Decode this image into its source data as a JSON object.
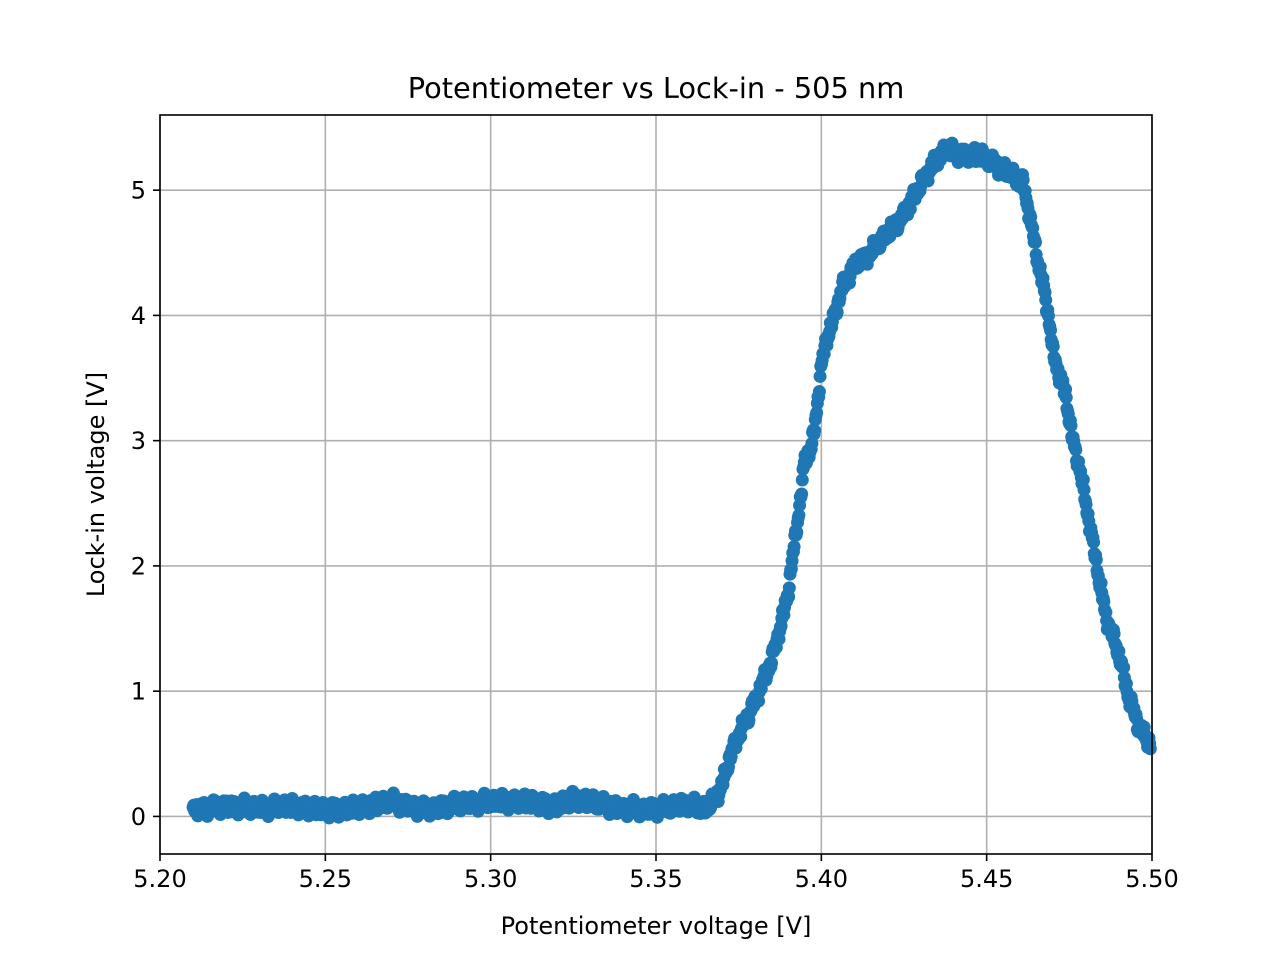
{
  "chart_data": {
    "type": "scatter",
    "title": "Potentiometer vs Lock-in - 505 nm",
    "xlabel": "Potentiometer voltage [V]",
    "ylabel": "Lock-in voltage [V]",
    "xlim": [
      5.2,
      5.5
    ],
    "ylim": [
      -0.3,
      5.6
    ],
    "xticks": [
      5.2,
      5.25,
      5.3,
      5.35,
      5.4,
      5.45,
      5.5
    ],
    "xtick_labels": [
      "5.20",
      "5.25",
      "5.30",
      "5.35",
      "5.40",
      "5.45",
      "5.50"
    ],
    "yticks": [
      0,
      1,
      2,
      3,
      4,
      5
    ],
    "ytick_labels": [
      "0",
      "1",
      "2",
      "3",
      "4",
      "5"
    ],
    "grid": true,
    "color": "#1f77b4",
    "x_range": [
      5.21,
      5.4995
    ],
    "curve": [
      [
        5.21,
        0.05
      ],
      [
        5.22,
        0.08
      ],
      [
        5.23,
        0.07
      ],
      [
        5.24,
        0.08
      ],
      [
        5.25,
        0.05
      ],
      [
        5.26,
        0.07
      ],
      [
        5.27,
        0.12
      ],
      [
        5.28,
        0.05
      ],
      [
        5.29,
        0.1
      ],
      [
        5.3,
        0.12
      ],
      [
        5.31,
        0.12
      ],
      [
        5.32,
        0.08
      ],
      [
        5.325,
        0.14
      ],
      [
        5.33,
        0.12
      ],
      [
        5.34,
        0.06
      ],
      [
        5.35,
        0.06
      ],
      [
        5.36,
        0.1
      ],
      [
        5.365,
        0.06
      ],
      [
        5.368,
        0.15
      ],
      [
        5.37,
        0.25
      ],
      [
        5.372,
        0.45
      ],
      [
        5.375,
        0.65
      ],
      [
        5.38,
        0.92
      ],
      [
        5.385,
        1.25
      ],
      [
        5.388,
        1.55
      ],
      [
        5.39,
        1.8
      ],
      [
        5.392,
        2.2
      ],
      [
        5.394,
        2.6
      ],
      [
        5.395,
        2.85
      ],
      [
        5.397,
        2.95
      ],
      [
        5.398,
        3.1
      ],
      [
        5.4,
        3.6
      ],
      [
        5.402,
        3.85
      ],
      [
        5.404,
        4.0
      ],
      [
        5.406,
        4.2
      ],
      [
        5.41,
        4.4
      ],
      [
        5.415,
        4.5
      ],
      [
        5.418,
        4.6
      ],
      [
        5.425,
        4.8
      ],
      [
        5.43,
        5.05
      ],
      [
        5.435,
        5.25
      ],
      [
        5.438,
        5.33
      ],
      [
        5.442,
        5.28
      ],
      [
        5.448,
        5.28
      ],
      [
        5.453,
        5.2
      ],
      [
        5.458,
        5.12
      ],
      [
        5.461,
        5.05
      ],
      [
        5.463,
        4.8
      ],
      [
        5.465,
        4.5
      ],
      [
        5.467,
        4.25
      ],
      [
        5.469,
        3.95
      ],
      [
        5.47,
        3.7
      ],
      [
        5.474,
        3.35
      ],
      [
        5.476,
        3.0
      ],
      [
        5.478,
        2.8
      ],
      [
        5.48,
        2.5
      ],
      [
        5.483,
        2.05
      ],
      [
        5.486,
        1.6
      ],
      [
        5.49,
        1.3
      ],
      [
        5.493,
        0.95
      ],
      [
        5.496,
        0.72
      ],
      [
        5.4995,
        0.58
      ]
    ],
    "marker_size": 6.5
  }
}
